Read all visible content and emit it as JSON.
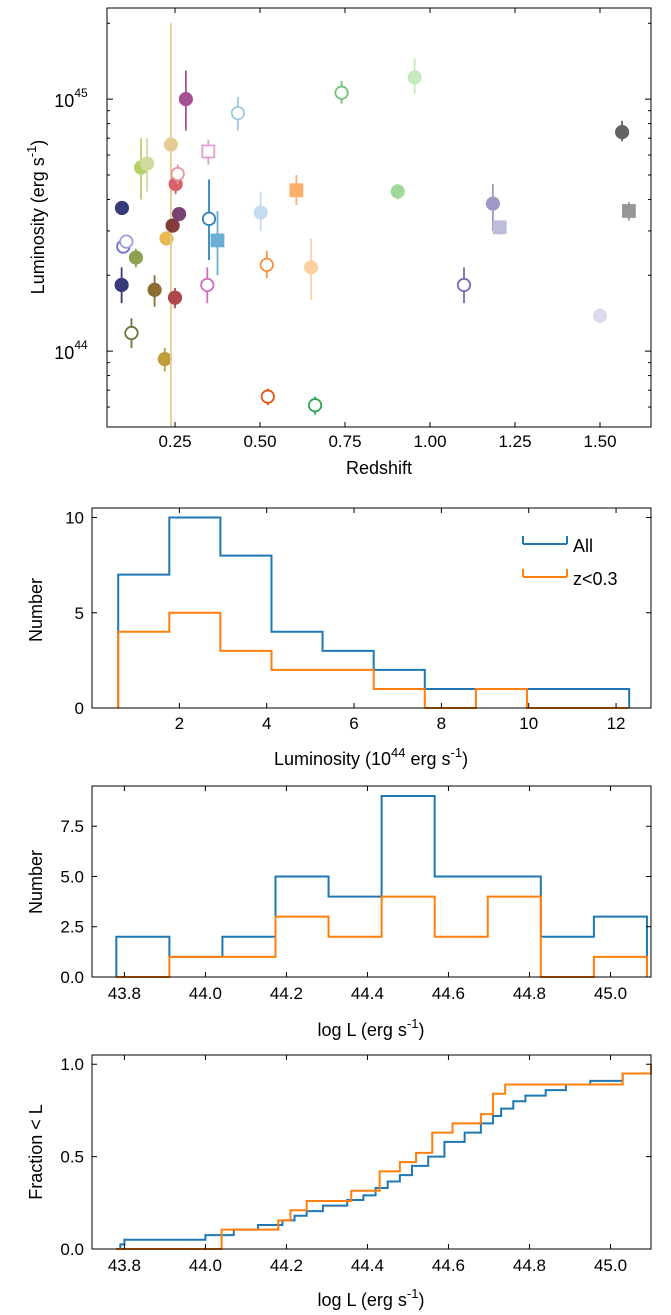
{
  "chart_data": [
    {
      "type": "scatter",
      "xlabel": "Redshift",
      "ylabel_main": "Luminosity (erg s",
      "ylabel_sup": "-1",
      "ylabel_close": ")",
      "xlim": [
        0.05,
        1.65
      ],
      "ylim": [
        5e+43,
        2.3e+45
      ],
      "yscale": "log",
      "x_ticks": [
        0.25,
        0.5,
        0.75,
        1.0,
        1.25,
        1.5
      ],
      "x_tick_labels": [
        "0.25",
        "0.50",
        "0.75",
        "1.00",
        "1.25",
        "1.50"
      ],
      "y_ticks": [
        1e+44,
        1e+45
      ],
      "y_tick_base": "10",
      "y_tick_exps": [
        "44",
        "45"
      ],
      "points": [
        {
          "x": 0.094,
          "y": 3.7e+44,
          "lo": 3.7e+44,
          "hi": 3.7e+44,
          "marker": "circle",
          "fill": "filled",
          "color": "#393b79"
        },
        {
          "x": 0.093,
          "y": 1.83e+44,
          "lo": 1.55e+44,
          "hi": 2.15e+44,
          "marker": "circle",
          "fill": "filled",
          "color": "#393b79"
        },
        {
          "x": 0.098,
          "y": 2.6e+44,
          "lo": 2.6e+44,
          "hi": 2.6e+44,
          "marker": "circle",
          "fill": "open",
          "color": "#6b6ecf"
        },
        {
          "x": 0.107,
          "y": 2.72e+44,
          "lo": 2.72e+44,
          "hi": 2.72e+44,
          "marker": "circle",
          "fill": "open",
          "color": "#9c9ede"
        },
        {
          "x": 0.122,
          "y": 1.18e+44,
          "lo": 1.03e+44,
          "hi": 1.35e+44,
          "marker": "circle",
          "fill": "open",
          "color": "#637939"
        },
        {
          "x": 0.135,
          "y": 2.35e+44,
          "lo": 2.15e+44,
          "hi": 2.55e+44,
          "marker": "circle",
          "fill": "filled",
          "color": "#8ca252"
        },
        {
          "x": 0.15,
          "y": 5.35e+44,
          "lo": 4e+44,
          "hi": 7e+44,
          "marker": "circle",
          "fill": "filled",
          "color": "#b5cf6b"
        },
        {
          "x": 0.168,
          "y": 5.55e+44,
          "lo": 4.3e+44,
          "hi": 7e+44,
          "marker": "circle",
          "fill": "filled",
          "color": "#cedb9c"
        },
        {
          "x": 0.19,
          "y": 1.75e+44,
          "lo": 1.5e+44,
          "hi": 2e+44,
          "marker": "circle",
          "fill": "filled",
          "color": "#8c6d31"
        },
        {
          "x": 0.22,
          "y": 9.3e+43,
          "lo": 8.3e+43,
          "hi": 1.03e+44,
          "marker": "circle",
          "fill": "filled",
          "color": "#bd9e39"
        },
        {
          "x": 0.225,
          "y": 2.8e+44,
          "lo": 2.8e+44,
          "hi": 2.8e+44,
          "marker": "circle",
          "fill": "filled",
          "color": "#e7ba52"
        },
        {
          "x": 0.238,
          "y": 6.6e+44,
          "lo": 5e+43,
          "hi": 2e+45,
          "marker": "circle",
          "fill": "filled",
          "color": "#e7cb94"
        },
        {
          "x": 0.243,
          "y": 3.15e+44,
          "lo": 3.15e+44,
          "hi": 3.15e+44,
          "marker": "circle",
          "fill": "filled",
          "color": "#843c39"
        },
        {
          "x": 0.25,
          "y": 1.63e+44,
          "lo": 1.48e+44,
          "hi": 1.78e+44,
          "marker": "circle",
          "fill": "filled",
          "color": "#ad494a"
        },
        {
          "x": 0.252,
          "y": 4.6e+44,
          "lo": 4.2e+44,
          "hi": 5.05e+44,
          "marker": "circle",
          "fill": "filled",
          "color": "#d6616b"
        },
        {
          "x": 0.258,
          "y": 5.05e+44,
          "lo": 4.6e+44,
          "hi": 5.5e+44,
          "marker": "circle",
          "fill": "open",
          "color": "#e7969c"
        },
        {
          "x": 0.262,
          "y": 3.5e+44,
          "lo": 3.3e+44,
          "hi": 3.7e+44,
          "marker": "circle",
          "fill": "filled",
          "color": "#7b4173"
        },
        {
          "x": 0.282,
          "y": 1e+45,
          "lo": 7.5e+44,
          "hi": 1.3e+45,
          "marker": "circle",
          "fill": "filled",
          "color": "#a55194"
        },
        {
          "x": 0.345,
          "y": 1.83e+44,
          "lo": 1.55e+44,
          "hi": 2.15e+44,
          "marker": "circle",
          "fill": "open",
          "color": "#ce6dbd"
        },
        {
          "x": 0.348,
          "y": 6.2e+44,
          "lo": 5.5e+44,
          "hi": 6.9e+44,
          "marker": "square",
          "fill": "open",
          "color": "#de9ed6"
        },
        {
          "x": 0.35,
          "y": 3.35e+44,
          "lo": 2.3e+44,
          "hi": 4.8e+44,
          "marker": "circle",
          "fill": "open",
          "color": "#3182bd"
        },
        {
          "x": 0.375,
          "y": 2.75e+44,
          "lo": 2e+44,
          "hi": 3.6e+44,
          "marker": "square",
          "fill": "filled",
          "color": "#6baed6"
        },
        {
          "x": 0.435,
          "y": 8.8e+44,
          "lo": 7.5e+44,
          "hi": 1.02e+45,
          "marker": "circle",
          "fill": "open",
          "color": "#9ecae1"
        },
        {
          "x": 0.502,
          "y": 3.55e+44,
          "lo": 3e+44,
          "hi": 4.3e+44,
          "marker": "circle",
          "fill": "filled",
          "color": "#c6dbef"
        },
        {
          "x": 0.52,
          "y": 2.2e+44,
          "lo": 1.95e+44,
          "hi": 2.5e+44,
          "marker": "circle",
          "fill": "open",
          "color": "#fd8d3c"
        },
        {
          "x": 0.523,
          "y": 6.6e+43,
          "lo": 6.1e+43,
          "hi": 7.1e+43,
          "marker": "circle",
          "fill": "open",
          "color": "#e6550d"
        },
        {
          "x": 0.607,
          "y": 4.35e+44,
          "lo": 3.8e+44,
          "hi": 5e+44,
          "marker": "square",
          "fill": "filled",
          "color": "#fdae6b"
        },
        {
          "x": 0.65,
          "y": 2.15e+44,
          "lo": 1.6e+44,
          "hi": 2.8e+44,
          "marker": "circle",
          "fill": "filled",
          "color": "#fdd0a2"
        },
        {
          "x": 0.662,
          "y": 6.1e+43,
          "lo": 5.6e+43,
          "hi": 6.6e+43,
          "marker": "circle",
          "fill": "open",
          "color": "#31a354"
        },
        {
          "x": 0.74,
          "y": 1.06e+45,
          "lo": 9.6e+44,
          "hi": 1.18e+45,
          "marker": "circle",
          "fill": "open",
          "color": "#74c476"
        },
        {
          "x": 0.905,
          "y": 4.3e+44,
          "lo": 4e+44,
          "hi": 4.6e+44,
          "marker": "circle",
          "fill": "filled",
          "color": "#a1d99b"
        },
        {
          "x": 0.955,
          "y": 1.22e+45,
          "lo": 1.05e+45,
          "hi": 1.45e+45,
          "marker": "circle",
          "fill": "filled",
          "color": "#c7e9c0"
        },
        {
          "x": 1.1,
          "y": 1.83e+44,
          "lo": 1.55e+44,
          "hi": 2.15e+44,
          "marker": "circle",
          "fill": "open",
          "color": "#756bb1"
        },
        {
          "x": 1.185,
          "y": 3.85e+44,
          "lo": 3e+44,
          "hi": 4.6e+44,
          "marker": "circle",
          "fill": "filled",
          "color": "#9e9ac8"
        },
        {
          "x": 1.205,
          "y": 3.1e+44,
          "lo": 2.9e+44,
          "hi": 3.3e+44,
          "marker": "square",
          "fill": "filled",
          "color": "#bcbddc"
        },
        {
          "x": 1.5,
          "y": 1.38e+44,
          "lo": 1.38e+44,
          "hi": 1.38e+44,
          "marker": "circle",
          "fill": "filled",
          "color": "#dadaeb"
        },
        {
          "x": 1.565,
          "y": 7.4e+44,
          "lo": 6.8e+44,
          "hi": 8.2e+44,
          "marker": "circle",
          "fill": "filled",
          "color": "#636363"
        },
        {
          "x": 1.585,
          "y": 3.6e+44,
          "lo": 3.3e+44,
          "hi": 3.9e+44,
          "marker": "square",
          "fill": "filled",
          "color": "#969696"
        }
      ]
    },
    {
      "type": "histogram",
      "xlabel_main": "Luminosity (10",
      "xlabel_sup1": "44",
      "xlabel_mid": " erg s",
      "xlabel_sup2": "-1",
      "xlabel_close": ")",
      "ylabel": "Number",
      "xlim": [
        0,
        12.8
      ],
      "ylim": [
        0,
        10.5
      ],
      "x_ticks": [
        2,
        4,
        6,
        8,
        10,
        12
      ],
      "x_tick_labels": [
        "2",
        "4",
        "6",
        "8",
        "10",
        "12"
      ],
      "y_ticks": [
        0,
        5,
        10
      ],
      "y_tick_labels": [
        "0",
        "5",
        "10"
      ],
      "legend_position": "top-right",
      "bins": [
        0.6,
        1.77,
        2.94,
        4.11,
        5.28,
        6.45,
        7.62,
        8.79,
        9.96,
        11.13,
        12.3
      ],
      "series": [
        {
          "name": "All",
          "color": "#1f77b4",
          "counts": [
            7,
            10,
            8,
            4,
            3,
            2,
            1,
            1,
            1,
            1
          ]
        },
        {
          "name": "z<0.3",
          "color": "#ff7f0e",
          "counts": [
            4,
            5,
            3,
            2,
            2,
            1,
            0,
            1,
            0,
            0
          ]
        }
      ]
    },
    {
      "type": "histogram",
      "xlabel_main": "log L (erg s",
      "xlabel_sup": "-1",
      "xlabel_close": ")",
      "ylabel": "Number",
      "xlim": [
        43.72,
        45.1
      ],
      "ylim": [
        0,
        9.5
      ],
      "x_ticks": [
        43.8,
        44.0,
        44.2,
        44.4,
        44.6,
        44.8,
        45.0
      ],
      "x_tick_labels": [
        "43.8",
        "44.0",
        "44.2",
        "44.4",
        "44.6",
        "44.8",
        "45.0"
      ],
      "y_ticks": [
        0,
        2.5,
        5,
        7.5
      ],
      "y_tick_labels": [
        "0.0",
        "2.5",
        "5.0",
        "7.5"
      ],
      "bins": [
        43.78,
        43.911,
        44.042,
        44.173,
        44.304,
        44.435,
        44.566,
        44.697,
        44.828,
        44.959,
        45.09
      ],
      "series": [
        {
          "name": "All",
          "color": "#1f77b4",
          "counts": [
            2,
            1,
            2,
            5,
            4,
            9,
            5,
            5,
            2,
            3
          ]
        },
        {
          "name": "z<0.3",
          "color": "#ff7f0e",
          "counts": [
            0,
            1,
            1,
            3,
            2,
            4,
            2,
            4,
            0,
            1
          ]
        }
      ]
    },
    {
      "type": "step",
      "xlabel_main": "log L (erg s",
      "xlabel_sup": "-1",
      "xlabel_close": ")",
      "ylabel": "Fraction < L",
      "xlim": [
        43.72,
        45.1
      ],
      "ylim": [
        0,
        1.05
      ],
      "x_ticks": [
        43.8,
        44.0,
        44.2,
        44.4,
        44.6,
        44.8,
        45.0
      ],
      "x_tick_labels": [
        "43.8",
        "44.0",
        "44.2",
        "44.4",
        "44.6",
        "44.8",
        "45.0"
      ],
      "y_ticks": [
        0,
        0.5,
        1.0
      ],
      "y_tick_labels": [
        "0.0",
        "0.5",
        "1.0"
      ],
      "series": [
        {
          "name": "All",
          "color": "#1f77b4",
          "x": [
            43.78,
            43.79,
            43.8,
            44.0,
            44.07,
            44.13,
            44.19,
            44.22,
            44.25,
            44.29,
            44.35,
            44.39,
            44.42,
            44.45,
            44.48,
            44.51,
            44.55,
            44.59,
            44.64,
            44.68,
            44.71,
            44.73,
            44.76,
            44.79,
            44.84,
            44.89,
            44.95,
            45.03,
            45.1
          ],
          "y": [
            0.0,
            0.025,
            0.05,
            0.075,
            0.105,
            0.13,
            0.155,
            0.18,
            0.205,
            0.235,
            0.265,
            0.29,
            0.33,
            0.365,
            0.4,
            0.45,
            0.5,
            0.58,
            0.63,
            0.68,
            0.72,
            0.76,
            0.8,
            0.83,
            0.86,
            0.89,
            0.91,
            0.95,
            1.0
          ]
        },
        {
          "name": "z<0.3",
          "color": "#ff7f0e",
          "x": [
            43.78,
            43.91,
            44.04,
            44.18,
            44.21,
            44.25,
            44.36,
            44.43,
            44.48,
            44.52,
            44.56,
            44.61,
            44.68,
            44.71,
            44.74,
            45.03,
            45.1
          ],
          "y": [
            0.0,
            0.0,
            0.105,
            0.155,
            0.21,
            0.26,
            0.315,
            0.42,
            0.47,
            0.52,
            0.63,
            0.68,
            0.73,
            0.84,
            0.89,
            0.95,
            1.0
          ]
        }
      ]
    }
  ]
}
